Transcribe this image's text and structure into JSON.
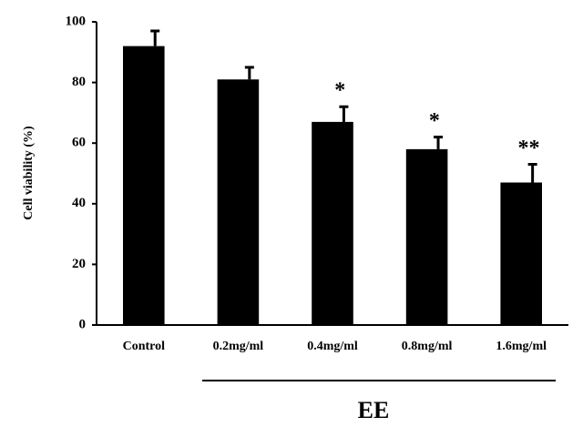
{
  "chart_data": {
    "type": "bar",
    "y_label": "Cell viability (%)",
    "categories": [
      "Control",
      "0.2mg/ml",
      "0.4mg/ml",
      "0.8mg/ml",
      "1.6mg/ml"
    ],
    "values": [
      92,
      81,
      67,
      58,
      47
    ],
    "errors": [
      5,
      4,
      5,
      4,
      6
    ],
    "significance": [
      null,
      null,
      "*",
      "*",
      "**"
    ],
    "group_label": "EE",
    "color": "#000000",
    "ylim": [
      0,
      100
    ],
    "yticks": [
      0,
      20,
      40,
      60,
      80,
      100
    ],
    "grid": false
  }
}
